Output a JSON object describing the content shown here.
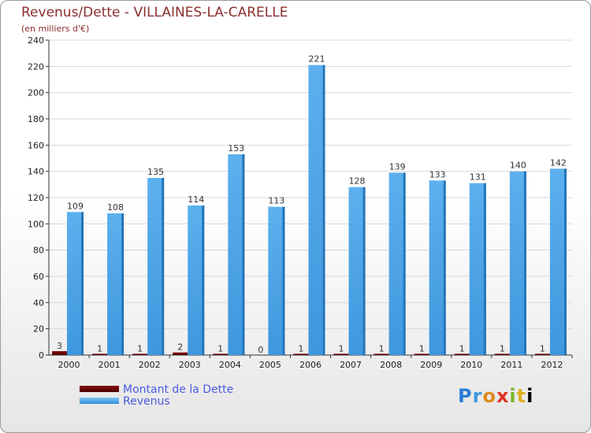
{
  "title": "Revenus/Dette - VILLAINES-LA-CARELLE",
  "subtitle": "(en milliers d'€)",
  "brand": [
    "P",
    "r",
    "o",
    "x",
    "i",
    "t",
    "i"
  ],
  "chart_data": {
    "type": "bar",
    "categories": [
      "2000",
      "2001",
      "2002",
      "2003",
      "2004",
      "2005",
      "2006",
      "2007",
      "2008",
      "2009",
      "2010",
      "2011",
      "2012"
    ],
    "series": [
      {
        "name": "Montant de la Dette",
        "color": "#6e0000",
        "values": [
          3,
          1,
          1,
          2,
          1,
          0,
          1,
          1,
          1,
          1,
          1,
          1,
          1
        ]
      },
      {
        "name": "Revenus",
        "color": "#4aa3e6",
        "values": [
          109,
          108,
          135,
          114,
          153,
          113,
          221,
          128,
          139,
          133,
          131,
          140,
          142
        ]
      }
    ],
    "ylim": [
      0,
      240
    ],
    "yticks": [
      0,
      20,
      40,
      60,
      80,
      100,
      120,
      140,
      160,
      180,
      200,
      220,
      240
    ],
    "legend_position": "bottom-left"
  }
}
